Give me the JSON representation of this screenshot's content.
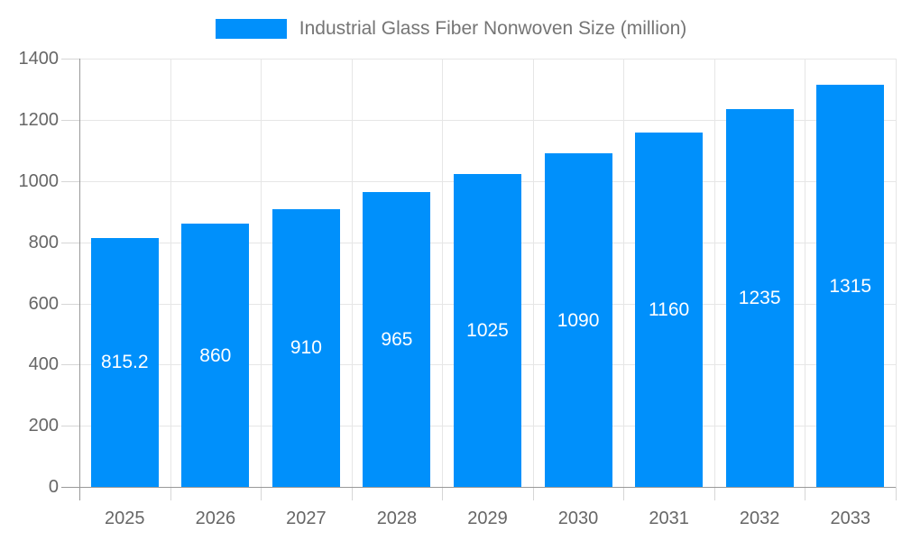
{
  "chart_data": {
    "type": "bar",
    "title": "Industrial Glass Fiber Nonwoven Size (million)",
    "categories": [
      "2025",
      "2026",
      "2027",
      "2028",
      "2029",
      "2030",
      "2031",
      "2032",
      "2033"
    ],
    "values": [
      815.2,
      860,
      910,
      965,
      1025,
      1090,
      1160,
      1235,
      1315
    ],
    "bar_labels": [
      "815.2",
      "860",
      "910",
      "965",
      "1025",
      "1090",
      "1160",
      "1235",
      "1315"
    ],
    "xlabel": "",
    "ylabel": "",
    "ylim": [
      0,
      1400
    ],
    "ytick_interval": 200,
    "yticks": [
      0,
      200,
      400,
      600,
      800,
      1000,
      1200,
      1400
    ],
    "grid": "horizontal and vertical",
    "legend_position": "top-center",
    "colors": {
      "bar": "#0090FB",
      "gridline": "#e6e6e6",
      "tick": "#d6d6d6",
      "axis_line": "#999999",
      "axis_text": "#666666",
      "legend_text": "#757575",
      "bar_label_text": "#ffffff",
      "background": "#ffffff"
    }
  }
}
